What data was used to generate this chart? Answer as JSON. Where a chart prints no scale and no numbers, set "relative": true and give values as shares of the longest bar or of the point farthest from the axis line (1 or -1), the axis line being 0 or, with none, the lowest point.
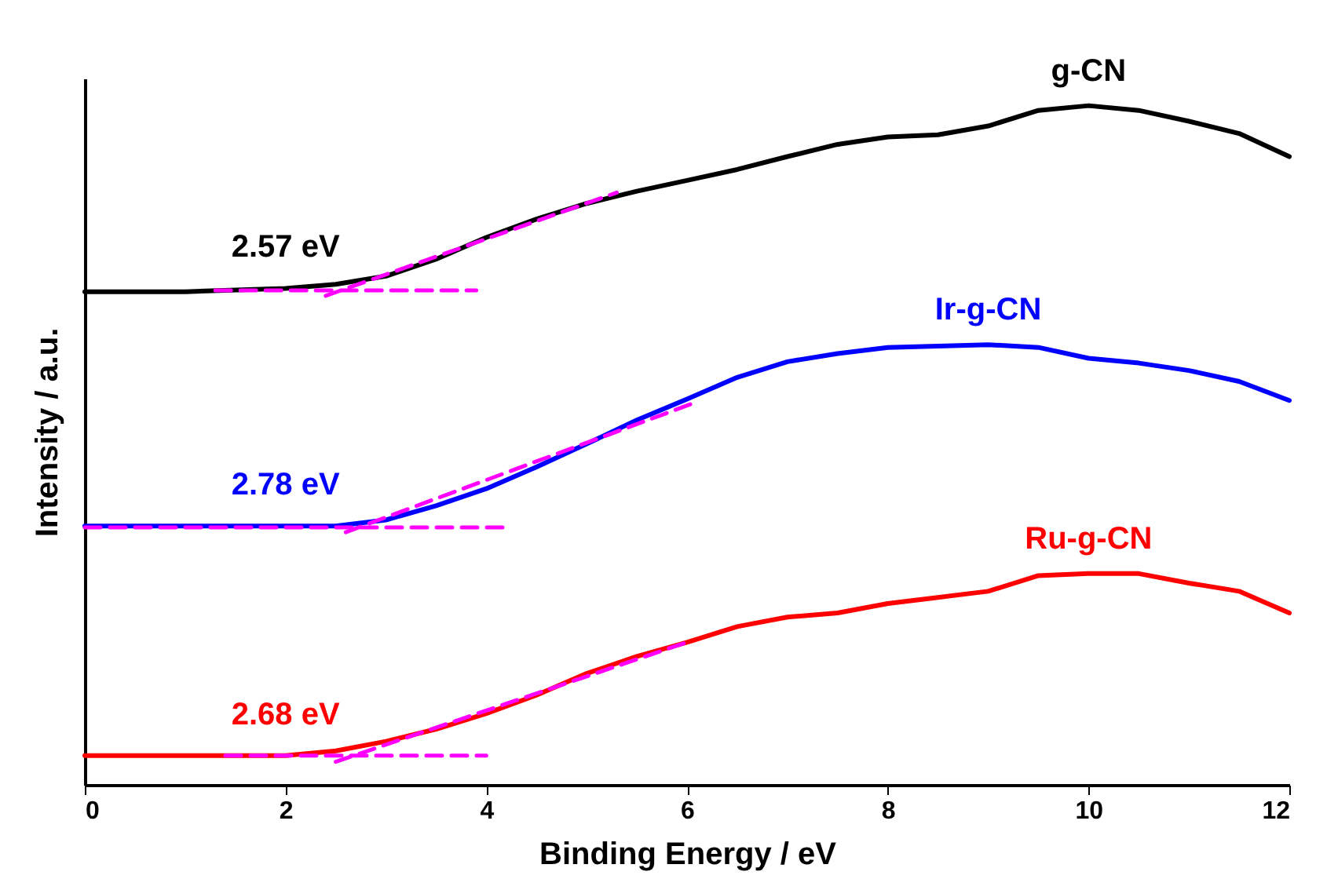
{
  "chart_data": {
    "type": "line",
    "relative": true,
    "xlabel": "Binding Energy / eV",
    "ylabel": "Intensity / a.u.",
    "x": [
      0,
      1,
      2,
      2.5,
      3,
      3.5,
      4,
      4.5,
      5,
      5.5,
      6,
      6.5,
      7,
      7.5,
      8,
      8.5,
      9,
      9.5,
      10,
      10.5,
      11,
      11.5,
      12
    ],
    "xlim": [
      0,
      12
    ],
    "xticks": [
      0,
      2,
      4,
      6,
      8,
      10,
      12
    ],
    "grid": false,
    "tick_labels": "x",
    "series": [
      {
        "name": "g-CN",
        "color": "#000000",
        "values": [
          0.726,
          0.726,
          0.731,
          0.737,
          0.749,
          0.774,
          0.806,
          0.833,
          0.856,
          0.874,
          0.89,
          0.906,
          0.925,
          0.943,
          0.954,
          0.957,
          0.97,
          0.993,
          1,
          0.993,
          0.977,
          0.959,
          0.925
        ]
      },
      {
        "name": "Ir-g-CN",
        "color": "#0000ff",
        "values": [
          0.381,
          0.381,
          0.381,
          0.381,
          0.39,
          0.411,
          0.436,
          0.468,
          0.502,
          0.537,
          0.568,
          0.6,
          0.623,
          0.635,
          0.644,
          0.646,
          0.648,
          0.644,
          0.628,
          0.621,
          0.61,
          0.594,
          0.566
        ]
      },
      {
        "name": "Ru-g-CN",
        "color": "#ff0000",
        "values": [
          0.043,
          0.043,
          0.043,
          0.05,
          0.064,
          0.082,
          0.105,
          0.132,
          0.164,
          0.189,
          0.21,
          0.233,
          0.247,
          0.253,
          0.267,
          0.276,
          0.285,
          0.308,
          0.311,
          0.311,
          0.297,
          0.285,
          0.253
        ]
      },
      {
        "type": "line",
        "color": "#ff00ff",
        "line_style": "dashed",
        "x": [
          1.3,
          3.9
        ],
        "values": [
          0.728,
          0.728
        ]
      },
      {
        "type": "line",
        "color": "#ff00ff",
        "line_style": "dashed",
        "x": [
          2.4,
          5.3
        ],
        "values": [
          0.72,
          0.872
        ]
      },
      {
        "type": "line",
        "color": "#ff00ff",
        "line_style": "dashed",
        "x": [
          0,
          4.2
        ],
        "values": [
          0.379,
          0.379
        ]
      },
      {
        "type": "line",
        "color": "#ff00ff",
        "line_style": "dashed",
        "x": [
          2.6,
          6.1
        ],
        "values": [
          0.372,
          0.564
        ]
      },
      {
        "type": "line",
        "color": "#ff00ff",
        "line_style": "dashed",
        "x": [
          1.4,
          4.0
        ],
        "values": [
          0.043,
          0.043
        ]
      },
      {
        "type": "line",
        "color": "#ff00ff",
        "line_style": "dashed",
        "x": [
          2.5,
          6.0
        ],
        "values": [
          0.034,
          0.21
        ]
      }
    ],
    "annotations": [
      "2.57 eV",
      "2.78 eV",
      "2.68 eV"
    ]
  }
}
